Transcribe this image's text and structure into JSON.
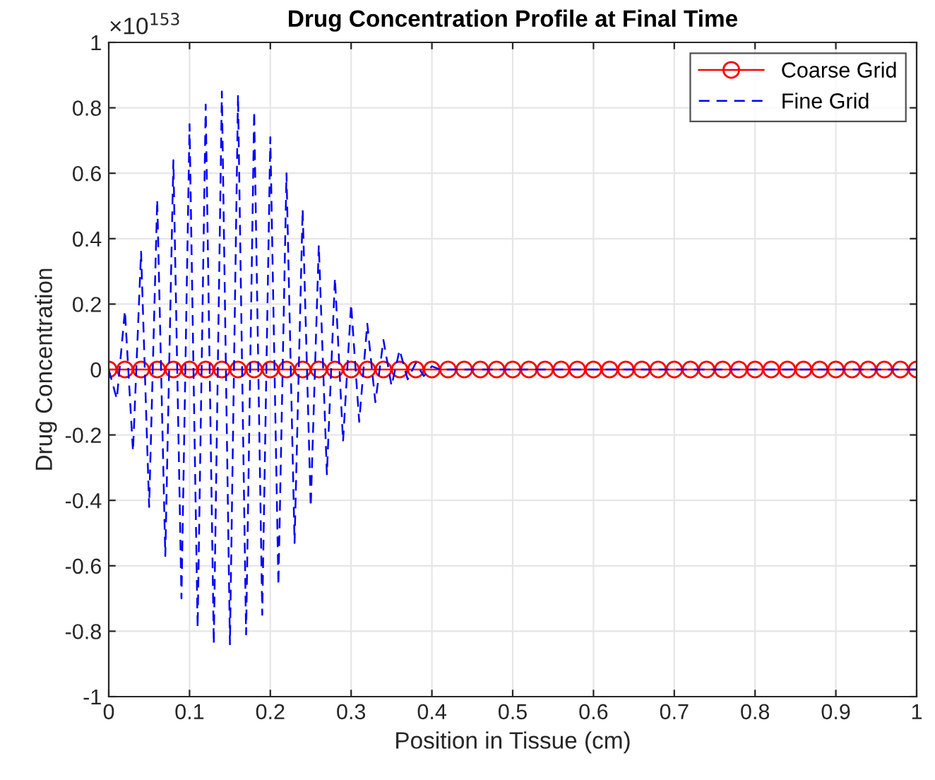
{
  "chart_data": {
    "type": "line",
    "title": "Drug Concentration Profile at Final Time",
    "xlabel": "Position in Tissue (cm)",
    "ylabel": "Drug Concentration",
    "annotations": [
      "×10$^{153}$"
    ],
    "xlim": [
      0,
      1
    ],
    "ylim": [
      -1,
      1
    ],
    "xticks": [
      0,
      0.1,
      0.2,
      0.3,
      0.4,
      0.5,
      0.6,
      0.7,
      0.8,
      0.9,
      1
    ],
    "yticks": [
      -1,
      -0.8,
      -0.6,
      -0.4,
      -0.2,
      0,
      0.2,
      0.4,
      0.6,
      0.8,
      1
    ],
    "grid": true,
    "legend": "top right",
    "series": [
      {
        "name": "Coarse Grid",
        "color": "#ff0000",
        "marker": "circle",
        "line_style": "solid",
        "x": [
          0,
          0.02,
          0.04,
          0.06,
          0.08,
          0.1,
          0.12,
          0.14,
          0.16,
          0.18,
          0.2,
          0.22,
          0.24,
          0.26,
          0.28,
          0.3,
          0.32,
          0.34,
          0.36,
          0.38,
          0.4,
          0.42,
          0.44,
          0.46,
          0.48,
          0.5,
          0.52,
          0.54,
          0.56,
          0.58,
          0.6,
          0.62,
          0.64,
          0.66,
          0.68,
          0.7,
          0.72,
          0.74,
          0.76,
          0.78,
          0.8,
          0.82,
          0.84,
          0.86,
          0.88,
          0.9,
          0.92,
          0.94,
          0.96,
          0.98,
          1
        ],
        "values": [
          0,
          0,
          0,
          0,
          0,
          0,
          0,
          0,
          0,
          0,
          0,
          0,
          0,
          0,
          0,
          0,
          0,
          0,
          0,
          0,
          0,
          0,
          0,
          0,
          0,
          0,
          0,
          0,
          0,
          0,
          0,
          0,
          0,
          0,
          0,
          0,
          0,
          0,
          0,
          0,
          0,
          0,
          0,
          0,
          0,
          0,
          0,
          0,
          0,
          0,
          0
        ]
      },
      {
        "name": "Fine Grid",
        "color": "#0000ff",
        "marker": "none",
        "line_style": "dashed",
        "x": [
          0,
          0.01,
          0.02,
          0.03,
          0.04,
          0.05,
          0.06,
          0.07,
          0.08,
          0.09,
          0.1,
          0.11,
          0.12,
          0.13,
          0.14,
          0.15,
          0.16,
          0.17,
          0.18,
          0.19,
          0.2,
          0.21,
          0.22,
          0.23,
          0.24,
          0.25,
          0.26,
          0.27,
          0.28,
          0.29,
          0.3,
          0.31,
          0.32,
          0.33,
          0.34,
          0.35,
          0.36,
          0.37,
          0.38,
          0.39,
          0.4,
          0.41,
          0.42,
          0.43,
          0.44,
          0.45,
          0.46,
          0.47,
          0.48,
          0.49,
          0.5,
          0.51,
          0.52,
          0.53,
          0.54,
          0.55,
          0.56,
          0.57,
          0.58,
          0.59,
          0.6,
          0.61,
          0.62,
          0.63,
          0.64,
          0.65,
          0.66,
          0.67,
          0.68,
          0.69,
          0.7,
          0.71,
          0.72,
          0.73,
          0.74,
          0.75,
          0.76,
          0.77,
          0.78,
          0.79,
          0.8,
          0.81,
          0.82,
          0.83,
          0.84,
          0.85,
          0.86,
          0.87,
          0.88,
          0.89,
          0.9,
          0.91,
          0.92,
          0.93,
          0.94,
          0.95,
          0.96,
          0.97,
          0.98,
          0.99,
          1
        ],
        "values": [
          0,
          -0.09,
          0.18,
          -0.25,
          0.36,
          -0.42,
          0.52,
          -0.57,
          0.64,
          -0.7,
          0.75,
          -0.79,
          0.81,
          -0.84,
          0.85,
          -0.84,
          0.84,
          -0.81,
          0.79,
          -0.75,
          0.71,
          -0.66,
          0.6,
          -0.53,
          0.49,
          -0.42,
          0.38,
          -0.32,
          0.28,
          -0.22,
          0.2,
          -0.16,
          0.14,
          -0.1,
          0.09,
          -0.05,
          0.06,
          -0.03,
          0.02,
          -0.02,
          0.01,
          0,
          0,
          0,
          0,
          0,
          0,
          0,
          0,
          0,
          0,
          0,
          0,
          0,
          0,
          0,
          0,
          0,
          0,
          0,
          0,
          0,
          0,
          0,
          0,
          0,
          0,
          0,
          0,
          0,
          0,
          0,
          0,
          0,
          0,
          0,
          0,
          0,
          0,
          0,
          0,
          0,
          0,
          0,
          0,
          0,
          0,
          0,
          0,
          0,
          0,
          0,
          0,
          0,
          0,
          0,
          0,
          0,
          0,
          0,
          0
        ]
      }
    ]
  }
}
